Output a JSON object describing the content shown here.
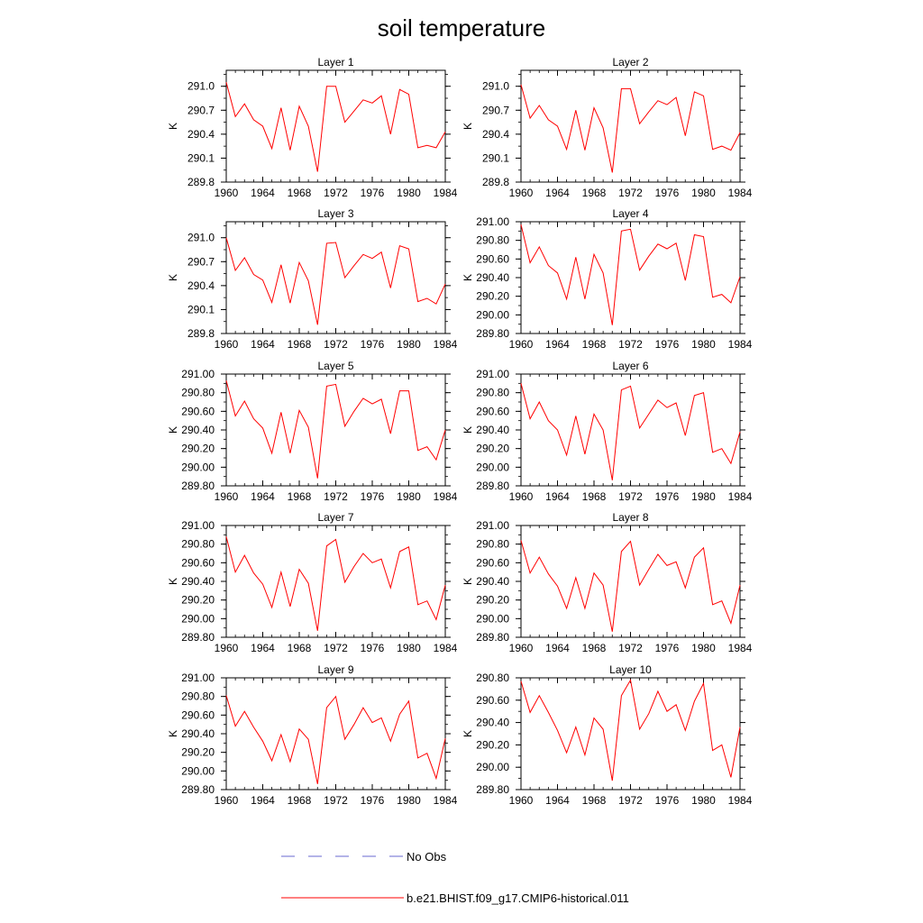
{
  "title": "soil temperature",
  "legend": {
    "items": [
      {
        "label": "No Obs",
        "color": "#6a6ad0",
        "dashed": true
      },
      {
        "label": "b.e21.BHIST.f09_g17.CMIP6-historical.011",
        "color": "#ff0000",
        "dashed": false
      }
    ]
  },
  "chart_data": [
    {
      "type": "line",
      "title": "Layer 1",
      "ylabel": "K",
      "xlim": [
        1960,
        1984
      ],
      "ylim": [
        289.8,
        291.2
      ],
      "yticks": [
        "289.8",
        "290.1",
        "290.4",
        "290.7",
        "291.0"
      ],
      "xticks": [
        "1960",
        "1964",
        "1968",
        "1972",
        "1976",
        "1980",
        "1984"
      ],
      "x": [
        1960,
        1961,
        1962,
        1963,
        1964,
        1965,
        1966,
        1967,
        1968,
        1969,
        1970,
        1971,
        1972,
        1973,
        1974,
        1975,
        1976,
        1977,
        1978,
        1979,
        1980,
        1981,
        1982,
        1983,
        1984
      ],
      "series": [
        {
          "name": "b.e21.BHIST.f09_g17.CMIP6-historical.011",
          "color": "#ff0000",
          "values": [
            291.05,
            290.62,
            290.78,
            290.58,
            290.5,
            290.22,
            290.73,
            290.2,
            290.75,
            290.5,
            289.93,
            291.0,
            291.0,
            290.55,
            290.69,
            290.83,
            290.79,
            290.88,
            290.4,
            290.96,
            290.9,
            290.23,
            290.26,
            290.23,
            290.43
          ]
        }
      ]
    },
    {
      "type": "line",
      "title": "Layer 2",
      "ylabel": "K",
      "xlim": [
        1960,
        1984
      ],
      "ylim": [
        289.8,
        291.2
      ],
      "yticks": [
        "289.8",
        "290.1",
        "290.4",
        "290.7",
        "291.0"
      ],
      "xticks": [
        "1960",
        "1964",
        "1968",
        "1972",
        "1976",
        "1980",
        "1984"
      ],
      "x": [
        1960,
        1961,
        1962,
        1963,
        1964,
        1965,
        1966,
        1967,
        1968,
        1969,
        1970,
        1971,
        1972,
        1973,
        1974,
        1975,
        1976,
        1977,
        1978,
        1979,
        1980,
        1981,
        1982,
        1983,
        1984
      ],
      "series": [
        {
          "name": "b.e21.BHIST.f09_g17.CMIP6-historical.011",
          "color": "#ff0000",
          "values": [
            291.02,
            290.6,
            290.76,
            290.58,
            290.5,
            290.21,
            290.7,
            290.2,
            290.73,
            290.48,
            289.92,
            290.97,
            290.97,
            290.53,
            290.68,
            290.82,
            290.77,
            290.86,
            290.38,
            290.93,
            290.88,
            290.21,
            290.25,
            290.2,
            290.42
          ]
        }
      ]
    },
    {
      "type": "line",
      "title": "Layer 3",
      "ylabel": "K",
      "xlim": [
        1960,
        1984
      ],
      "ylim": [
        289.8,
        291.2
      ],
      "yticks": [
        "289.8",
        "290.1",
        "290.4",
        "290.7",
        "291.0"
      ],
      "xticks": [
        "1960",
        "1964",
        "1968",
        "1972",
        "1976",
        "1980",
        "1984"
      ],
      "x": [
        1960,
        1961,
        1962,
        1963,
        1964,
        1965,
        1966,
        1967,
        1968,
        1969,
        1970,
        1971,
        1972,
        1973,
        1974,
        1975,
        1976,
        1977,
        1978,
        1979,
        1980,
        1981,
        1982,
        1983,
        1984
      ],
      "series": [
        {
          "name": "b.e21.BHIST.f09_g17.CMIP6-historical.011",
          "color": "#ff0000",
          "values": [
            291.0,
            290.59,
            290.75,
            290.54,
            290.47,
            290.19,
            290.66,
            290.18,
            290.69,
            290.46,
            289.91,
            290.93,
            290.94,
            290.5,
            290.65,
            290.79,
            290.74,
            290.82,
            290.37,
            290.9,
            290.86,
            290.2,
            290.24,
            290.17,
            290.42
          ]
        }
      ]
    },
    {
      "type": "line",
      "title": "Layer 4",
      "ylabel": "K",
      "xlim": [
        1960,
        1984
      ],
      "ylim": [
        289.8,
        291.0
      ],
      "yticks": [
        "289.80",
        "290.00",
        "290.20",
        "290.40",
        "290.60",
        "290.80",
        "291.00"
      ],
      "xticks": [
        "1960",
        "1964",
        "1968",
        "1972",
        "1976",
        "1980",
        "1984"
      ],
      "x": [
        1960,
        1961,
        1962,
        1963,
        1964,
        1965,
        1966,
        1967,
        1968,
        1969,
        1970,
        1971,
        1972,
        1973,
        1974,
        1975,
        1976,
        1977,
        1978,
        1979,
        1980,
        1981,
        1982,
        1983,
        1984
      ],
      "series": [
        {
          "name": "b.e21.BHIST.f09_g17.CMIP6-historical.011",
          "color": "#ff0000",
          "values": [
            290.97,
            290.56,
            290.73,
            290.53,
            290.45,
            290.17,
            290.62,
            290.17,
            290.65,
            290.45,
            289.89,
            290.9,
            290.92,
            290.48,
            290.63,
            290.76,
            290.71,
            290.77,
            290.37,
            290.86,
            290.84,
            290.19,
            290.22,
            290.13,
            290.41
          ]
        }
      ]
    },
    {
      "type": "line",
      "title": "Layer 5",
      "ylabel": "K",
      "xlim": [
        1960,
        1984
      ],
      "ylim": [
        289.8,
        291.0
      ],
      "yticks": [
        "289.80",
        "290.00",
        "290.20",
        "290.40",
        "290.60",
        "290.80",
        "291.00"
      ],
      "xticks": [
        "1960",
        "1964",
        "1968",
        "1972",
        "1976",
        "1980",
        "1984"
      ],
      "x": [
        1960,
        1961,
        1962,
        1963,
        1964,
        1965,
        1966,
        1967,
        1968,
        1969,
        1970,
        1971,
        1972,
        1973,
        1974,
        1975,
        1976,
        1977,
        1978,
        1979,
        1980,
        1981,
        1982,
        1983,
        1984
      ],
      "series": [
        {
          "name": "b.e21.BHIST.f09_g17.CMIP6-historical.011",
          "color": "#ff0000",
          "values": [
            290.93,
            290.55,
            290.71,
            290.52,
            290.42,
            290.15,
            290.59,
            290.15,
            290.61,
            290.43,
            289.88,
            290.87,
            290.89,
            290.44,
            290.6,
            290.74,
            290.68,
            290.73,
            290.36,
            290.82,
            290.82,
            290.18,
            290.22,
            290.08,
            290.4
          ]
        }
      ]
    },
    {
      "type": "line",
      "title": "Layer 6",
      "ylabel": "K",
      "xlim": [
        1960,
        1984
      ],
      "ylim": [
        289.8,
        291.0
      ],
      "yticks": [
        "289.80",
        "290.00",
        "290.20",
        "290.40",
        "290.60",
        "290.80",
        "291.00"
      ],
      "xticks": [
        "1960",
        "1964",
        "1968",
        "1972",
        "1976",
        "1980",
        "1984"
      ],
      "x": [
        1960,
        1961,
        1962,
        1963,
        1964,
        1965,
        1966,
        1967,
        1968,
        1969,
        1970,
        1971,
        1972,
        1973,
        1974,
        1975,
        1976,
        1977,
        1978,
        1979,
        1980,
        1981,
        1982,
        1983,
        1984
      ],
      "series": [
        {
          "name": "b.e21.BHIST.f09_g17.CMIP6-historical.011",
          "color": "#ff0000",
          "values": [
            290.9,
            290.52,
            290.7,
            290.5,
            290.4,
            290.13,
            290.55,
            290.14,
            290.57,
            290.4,
            289.86,
            290.83,
            290.87,
            290.42,
            290.57,
            290.72,
            290.64,
            290.69,
            290.34,
            290.77,
            290.8,
            290.16,
            290.2,
            290.04,
            290.38
          ]
        }
      ]
    },
    {
      "type": "line",
      "title": "Layer 7",
      "ylabel": "K",
      "xlim": [
        1960,
        1984
      ],
      "ylim": [
        289.8,
        291.0
      ],
      "yticks": [
        "289.80",
        "290.00",
        "290.20",
        "290.40",
        "290.60",
        "290.80",
        "291.00"
      ],
      "xticks": [
        "1960",
        "1964",
        "1968",
        "1972",
        "1976",
        "1980",
        "1984"
      ],
      "x": [
        1960,
        1961,
        1962,
        1963,
        1964,
        1965,
        1966,
        1967,
        1968,
        1969,
        1970,
        1971,
        1972,
        1973,
        1974,
        1975,
        1976,
        1977,
        1978,
        1979,
        1980,
        1981,
        1982,
        1983,
        1984
      ],
      "series": [
        {
          "name": "b.e21.BHIST.f09_g17.CMIP6-historical.011",
          "color": "#ff0000",
          "values": [
            290.88,
            290.5,
            290.68,
            290.49,
            290.37,
            290.12,
            290.5,
            290.13,
            290.53,
            290.38,
            289.87,
            290.78,
            290.85,
            290.39,
            290.56,
            290.7,
            290.6,
            290.64,
            290.33,
            290.72,
            290.77,
            290.15,
            290.19,
            289.99,
            290.36
          ]
        }
      ]
    },
    {
      "type": "line",
      "title": "Layer 8",
      "ylabel": "K",
      "xlim": [
        1960,
        1984
      ],
      "ylim": [
        289.8,
        291.0
      ],
      "yticks": [
        "289.80",
        "290.00",
        "290.20",
        "290.40",
        "290.60",
        "290.80",
        "291.00"
      ],
      "xticks": [
        "1960",
        "1964",
        "1968",
        "1972",
        "1976",
        "1980",
        "1984"
      ],
      "x": [
        1960,
        1961,
        1962,
        1963,
        1964,
        1965,
        1966,
        1967,
        1968,
        1969,
        1970,
        1971,
        1972,
        1973,
        1974,
        1975,
        1976,
        1977,
        1978,
        1979,
        1980,
        1981,
        1982,
        1983,
        1984
      ],
      "series": [
        {
          "name": "b.e21.BHIST.f09_g17.CMIP6-historical.011",
          "color": "#ff0000",
          "values": [
            290.84,
            290.49,
            290.66,
            290.48,
            290.35,
            290.11,
            290.44,
            290.11,
            290.49,
            290.36,
            289.86,
            290.72,
            290.83,
            290.36,
            290.53,
            290.69,
            290.57,
            290.61,
            290.33,
            290.66,
            290.76,
            290.15,
            290.19,
            289.95,
            290.36
          ]
        }
      ]
    },
    {
      "type": "line",
      "title": "Layer 9",
      "ylabel": "K",
      "xlim": [
        1960,
        1984
      ],
      "ylim": [
        289.8,
        291.0
      ],
      "yticks": [
        "289.80",
        "290.00",
        "290.20",
        "290.40",
        "290.60",
        "290.80",
        "291.00"
      ],
      "xticks": [
        "1960",
        "1964",
        "1968",
        "1972",
        "1976",
        "1980",
        "1984"
      ],
      "x": [
        1960,
        1961,
        1962,
        1963,
        1964,
        1965,
        1966,
        1967,
        1968,
        1969,
        1970,
        1971,
        1972,
        1973,
        1974,
        1975,
        1976,
        1977,
        1978,
        1979,
        1980,
        1981,
        1982,
        1983,
        1984
      ],
      "series": [
        {
          "name": "b.e21.BHIST.f09_g17.CMIP6-historical.011",
          "color": "#ff0000",
          "values": [
            290.81,
            290.48,
            290.64,
            290.47,
            290.32,
            290.11,
            290.39,
            290.1,
            290.45,
            290.34,
            289.86,
            290.68,
            290.8,
            290.34,
            290.5,
            290.68,
            290.52,
            290.57,
            290.32,
            290.61,
            290.75,
            290.14,
            290.19,
            289.92,
            290.35
          ]
        }
      ]
    },
    {
      "type": "line",
      "title": "Layer 10",
      "ylabel": "K",
      "xlim": [
        1960,
        1984
      ],
      "ylim": [
        289.8,
        290.8
      ],
      "yticks": [
        "289.80",
        "290.00",
        "290.20",
        "290.40",
        "290.60",
        "290.80"
      ],
      "xticks": [
        "1960",
        "1964",
        "1968",
        "1972",
        "1976",
        "1980",
        "1984"
      ],
      "x": [
        1960,
        1961,
        1962,
        1963,
        1964,
        1965,
        1966,
        1967,
        1968,
        1969,
        1970,
        1971,
        1972,
        1973,
        1974,
        1975,
        1976,
        1977,
        1978,
        1979,
        1980,
        1981,
        1982,
        1983,
        1984
      ],
      "series": [
        {
          "name": "b.e21.BHIST.f09_g17.CMIP6-historical.011",
          "color": "#ff0000",
          "values": [
            290.77,
            290.49,
            290.64,
            290.49,
            290.33,
            290.13,
            290.36,
            290.11,
            290.44,
            290.34,
            289.88,
            290.64,
            290.78,
            290.34,
            290.48,
            290.68,
            290.5,
            290.56,
            290.33,
            290.59,
            290.75,
            290.15,
            290.2,
            289.91,
            290.36
          ]
        }
      ]
    }
  ]
}
